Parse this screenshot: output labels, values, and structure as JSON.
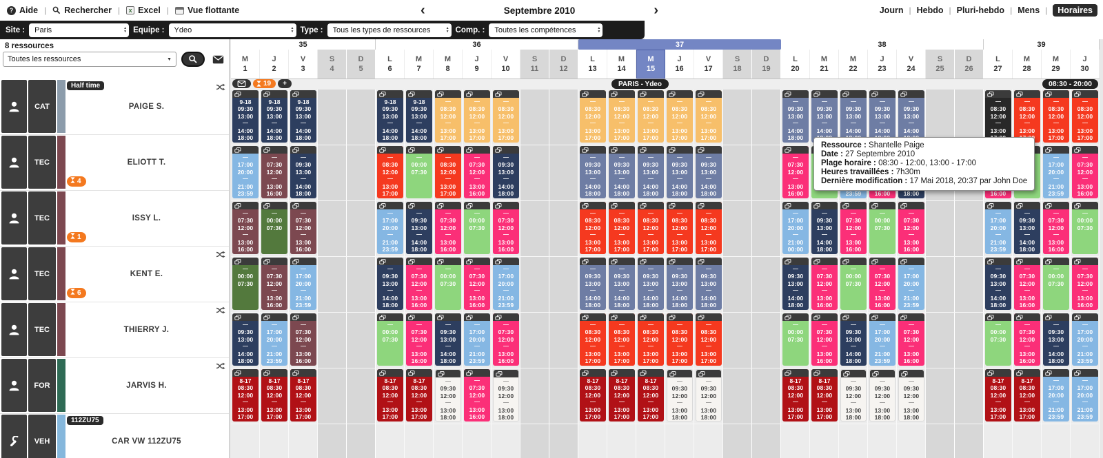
{
  "toolbar": {
    "items": [
      {
        "icon": "help-icon",
        "label": "Aide"
      },
      {
        "icon": "search-icon",
        "label": "Rechercher"
      },
      {
        "icon": "excel-icon",
        "label": "Excel"
      },
      {
        "icon": "floating-view-icon",
        "label": "Vue flottante"
      }
    ],
    "prev_arrow": "‹",
    "next_arrow": "›",
    "month_label": "Septembre 2010",
    "views": [
      {
        "label": "Journ",
        "active": false
      },
      {
        "label": "Hebdo",
        "active": false
      },
      {
        "label": "Pluri-hebdo",
        "active": false
      },
      {
        "label": "Mens",
        "active": false
      },
      {
        "label": "Horaires",
        "active": true
      }
    ]
  },
  "filters": {
    "site": {
      "label": "Site :",
      "value": "Paris"
    },
    "equipe": {
      "label": "Equipe :",
      "value": "Ydeo"
    },
    "type": {
      "label": "Type :",
      "value": "Tous les types de ressources"
    },
    "comp": {
      "label": "Comp. :",
      "value": "Toutes les compétences"
    }
  },
  "sidebar": {
    "count_label": "8 ressources",
    "filter_value": "Toutes les ressources"
  },
  "calendar": {
    "weeks": [
      {
        "num": "35",
        "days": 5,
        "current": false
      },
      {
        "num": "36",
        "days": 7,
        "current": false
      },
      {
        "num": "37",
        "days": 7,
        "current": true
      },
      {
        "num": "38",
        "days": 7,
        "current": false
      },
      {
        "num": "39",
        "days": 4,
        "current": false
      }
    ],
    "days": [
      {
        "d": "M",
        "n": 1
      },
      {
        "d": "J",
        "n": 2
      },
      {
        "d": "V",
        "n": 3
      },
      {
        "d": "S",
        "n": 4,
        "we": true
      },
      {
        "d": "D",
        "n": 5,
        "we": true
      },
      {
        "d": "L",
        "n": 6
      },
      {
        "d": "M",
        "n": 7
      },
      {
        "d": "M",
        "n": 8
      },
      {
        "d": "J",
        "n": 9
      },
      {
        "d": "V",
        "n": 10
      },
      {
        "d": "S",
        "n": 11,
        "we": true
      },
      {
        "d": "D",
        "n": 12,
        "we": true
      },
      {
        "d": "L",
        "n": 13
      },
      {
        "d": "M",
        "n": 14
      },
      {
        "d": "M",
        "n": 15
      },
      {
        "d": "J",
        "n": 16
      },
      {
        "d": "V",
        "n": 17
      },
      {
        "d": "S",
        "n": 18,
        "we": true
      },
      {
        "d": "D",
        "n": 19,
        "we": true
      },
      {
        "d": "L",
        "n": 20
      },
      {
        "d": "M",
        "n": 21
      },
      {
        "d": "M",
        "n": 22
      },
      {
        "d": "J",
        "n": 23
      },
      {
        "d": "V",
        "n": 24
      },
      {
        "d": "S",
        "n": 25,
        "we": true
      },
      {
        "d": "D",
        "n": 26,
        "we": true
      },
      {
        "d": "L",
        "n": 27
      },
      {
        "d": "M",
        "n": 28
      },
      {
        "d": "M",
        "n": 29
      },
      {
        "d": "J",
        "n": 30
      }
    ],
    "selected_day": 15,
    "pending_count": "19",
    "add_label": "+",
    "team_label": "PARIS - Ydeo",
    "hours_label": "08:30 - 20:00"
  },
  "palette": {
    "navy": "#2d3e5f",
    "slate": "#6e7da4",
    "orange": "#f7bf6a",
    "red": "#f5391f",
    "darkred": "#b11116",
    "pink": "#fb2f78",
    "maroon": "#7c4850",
    "darkgreen": "#53793d",
    "lightgreen": "#8ed67d",
    "lightblue": "#85b7e3",
    "black": "#282828",
    "white": "#f6f4f1"
  },
  "blocks": {
    "n918": {
      "color": "navy",
      "label": "9-18",
      "times": [
        "09:30",
        "13:00",
        "14:00",
        "18:00"
      ]
    },
    "nav": {
      "color": "navy",
      "times": [
        "09:30",
        "13:00",
        "14:00",
        "18:00"
      ]
    },
    "slt": {
      "color": "slate",
      "times": [
        "09:30",
        "13:00",
        "14:00",
        "18:00"
      ]
    },
    "org": {
      "color": "orange",
      "times": [
        "08:30",
        "12:00",
        "13:00",
        "17:00"
      ]
    },
    "red": {
      "color": "red",
      "times": [
        "08:30",
        "12:00",
        "13:00",
        "17:00"
      ]
    },
    "blk": {
      "color": "black",
      "times": [
        "08:30",
        "12:00",
        "13:00",
        "17:00"
      ]
    },
    "pnk": {
      "color": "pink",
      "times": [
        "07:30",
        "12:00",
        "13:00",
        "16:00"
      ]
    },
    "mrn": {
      "color": "maroon",
      "times": [
        "07:30",
        "12:00",
        "13:00",
        "16:00"
      ]
    },
    "lb": {
      "color": "lightblue",
      "times": [
        "17:00",
        "20:00",
        "21:00",
        "23:59"
      ]
    },
    "lbm": {
      "color": "lightblue",
      "times": [
        "17:00",
        "20:00",
        "21:00",
        "00:00"
      ]
    },
    "dg": {
      "color": "darkgreen",
      "times": [
        "00:00",
        "07:30"
      ]
    },
    "lg": {
      "color": "lightgreen",
      "times": [
        "00:00",
        "07:30"
      ]
    },
    "dr817": {
      "color": "darkred",
      "label": "8-17",
      "times": [
        "08:30",
        "12:00",
        "13:00",
        "17:00"
      ]
    },
    "wht": {
      "color": "white",
      "times": [
        "09:30",
        "12:00",
        "13:00",
        "18:00"
      ]
    }
  },
  "resources": [
    {
      "icon": "person",
      "cat": "CAT",
      "name": "PAIGE S.",
      "stripe": "#8c9cab",
      "tag": "Half time",
      "swap": true,
      "schedule": {
        "1": "n918",
        "2": "n918",
        "3": "n918",
        "6": "n918",
        "7": "n918",
        "8": "org",
        "9": "org",
        "10": "org",
        "13": "org",
        "14": "org",
        "15": "org",
        "16": "org",
        "17": "org",
        "20": "slt",
        "21": "slt",
        "22": "slt",
        "23": "slt",
        "24": "slt",
        "27": "blk",
        "28": "red",
        "29": "red",
        "30": "red"
      }
    },
    {
      "icon": "person",
      "cat": "TEC",
      "name": "ELIOTT T.",
      "stripe": "#7c4850",
      "badge": "4",
      "schedule": {
        "1": "lb",
        "2": "mrn",
        "3": "nav",
        "6": "red",
        "7": "lg",
        "8": "red",
        "9": "pnk",
        "10": "nav",
        "13": "slt",
        "14": "slt",
        "15": "slt",
        "16": "slt",
        "17": "slt",
        "20": "pnk",
        "21": "lg",
        "22": "lb",
        "23": "pnk",
        "24": "nav",
        "27": "pnk",
        "28": "lg",
        "29": "lb",
        "30": "pnk"
      }
    },
    {
      "icon": "person",
      "cat": "TEC",
      "name": "ISSY L.",
      "stripe": "#7c4850",
      "badge": "1",
      "schedule": {
        "1": "mrn",
        "2": "dg",
        "3": "mrn",
        "6": "lb",
        "7": "nav",
        "8": "pnk",
        "9": "lg",
        "10": "pnk",
        "13": "red",
        "14": "red",
        "15": "red",
        "16": "red",
        "17": "red",
        "20": "lbm",
        "21": "nav",
        "22": "pnk",
        "23": "lg",
        "24": "pnk",
        "27": "lb",
        "28": "nav",
        "29": "pnk",
        "30": "lg"
      }
    },
    {
      "icon": "person",
      "cat": "TEC",
      "name": "KENT E.",
      "stripe": "#7c4850",
      "badge": "6",
      "swap": true,
      "schedule": {
        "1": "dg",
        "2": "mrn",
        "3": "lb",
        "6": "nav",
        "7": "pnk",
        "8": "lg",
        "9": "pnk",
        "10": "lb",
        "13": "slt",
        "14": "slt",
        "15": "slt",
        "16": "slt",
        "17": "slt",
        "20": "nav",
        "21": "pnk",
        "22": "lg",
        "23": "pnk",
        "24": "lb",
        "27": "nav",
        "28": "pnk",
        "29": "lg",
        "30": "pnk"
      }
    },
    {
      "icon": "person",
      "cat": "TEC",
      "name": "THIERRY J.",
      "stripe": "#7c4850",
      "swap": true,
      "schedule": {
        "1": "nav",
        "2": "lb",
        "3": "mrn",
        "6": "lg",
        "7": "pnk",
        "8": "nav",
        "9": "lb",
        "10": "pnk",
        "13": "red",
        "14": "red",
        "15": "red",
        "16": "red",
        "17": "red",
        "20": "lg",
        "21": "pnk",
        "22": "nav",
        "23": "lb",
        "24": "pnk",
        "27": "lg",
        "28": "pnk",
        "29": "nav",
        "30": "lb"
      }
    },
    {
      "icon": "person",
      "cat": "FOR",
      "name": "JARVIS H.",
      "stripe": "#2f6b55",
      "swap": true,
      "schedule": {
        "1": "dr817",
        "2": "dr817",
        "3": "dr817",
        "6": "dr817",
        "7": "dr817",
        "8": "wht",
        "9": "pnk",
        "10": "wht",
        "13": "dr817",
        "14": "dr817",
        "15": "dr817",
        "16": "wht",
        "17": "wht",
        "20": "dr817",
        "21": "dr817",
        "22": "wht",
        "23": "wht",
        "24": "wht",
        "27": "dr817",
        "28": "dr817",
        "29": "lb",
        "30": "lb"
      }
    },
    {
      "icon": "wrench",
      "cat": "VEH",
      "name": "CAR VW 112ZU75",
      "stripe": "#85b7dc",
      "tag": "112ZU75",
      "schedule": {}
    }
  ],
  "tooltip": {
    "lines": [
      {
        "label": "Ressource :",
        "value": "Shantelle Paige"
      },
      {
        "label": "Date :",
        "value": "27 Septembre 2010"
      },
      {
        "label": "Plage horaire :",
        "value": "08:30 - 12:00, 13:00 - 17:00"
      },
      {
        "label": "Heures travaillées :",
        "value": "7h30m"
      },
      {
        "label": "Dernière modification :",
        "value": "17 Mai 2018, 20:37 par John Doe"
      }
    ]
  },
  "misc": {
    "dash": "—"
  }
}
